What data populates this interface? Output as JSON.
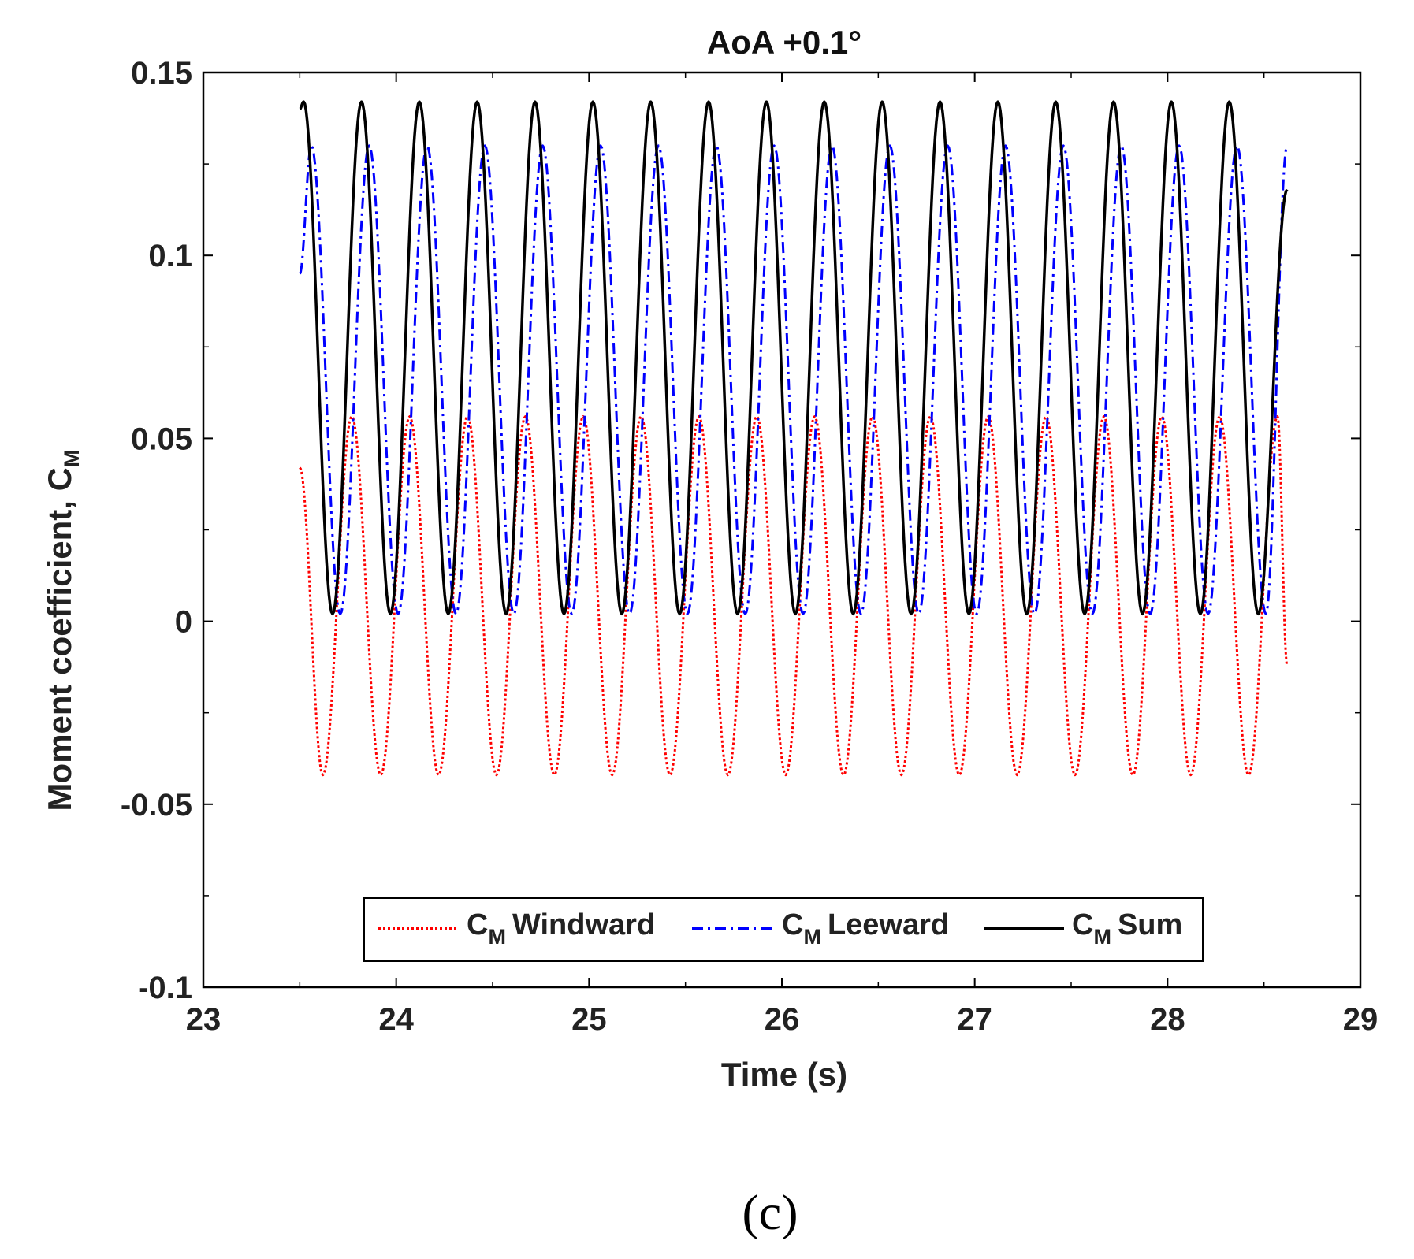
{
  "chart_data": {
    "type": "line",
    "title": "AoA +0.1°",
    "xlabel": "Time (s)",
    "ylabel": "Moment coefficient, C",
    "ylabel_sub": "M",
    "xlim": [
      23,
      29
    ],
    "ylim": [
      -0.1,
      0.15
    ],
    "x_ticks": [
      23,
      24,
      25,
      26,
      27,
      28,
      29
    ],
    "x_tick_labels": [
      "23",
      "24",
      "25",
      "26",
      "27",
      "28",
      "29"
    ],
    "y_ticks": [
      -0.1,
      -0.05,
      0,
      0.05,
      0.1,
      0.15
    ],
    "y_tick_labels": [
      "-0.1",
      "-0.05",
      "0",
      "0.05",
      "0.1",
      "0.15"
    ],
    "grid": false,
    "legend_position": "bottom-center",
    "panel_label": "(c)",
    "period_s": 0.2985,
    "time_range": [
      23.5,
      28.62
    ],
    "series": [
      {
        "name": "C Windward",
        "name_main": "C",
        "name_sub": "M",
        "name_rest": "Windward",
        "color": "#ff0000",
        "style": "dotted",
        "x": [
          23.5,
          23.62,
          23.77,
          23.92,
          24.07,
          24.22,
          24.37,
          24.52,
          24.67,
          24.82,
          24.97,
          25.12,
          25.27,
          25.42,
          25.57,
          25.72,
          25.87,
          26.02,
          26.17,
          26.32,
          26.47,
          26.62,
          26.77,
          26.92,
          27.07,
          27.22,
          27.37,
          27.52,
          27.67,
          27.82,
          27.97,
          28.12,
          28.27,
          28.42,
          28.57,
          28.62
        ],
        "y": [
          0.042,
          -0.042,
          0.056,
          -0.042,
          0.056,
          -0.042,
          0.056,
          -0.042,
          0.056,
          -0.042,
          0.056,
          -0.042,
          0.056,
          -0.042,
          0.056,
          -0.042,
          0.056,
          -0.042,
          0.056,
          -0.042,
          0.056,
          -0.042,
          0.056,
          -0.042,
          0.056,
          -0.042,
          0.056,
          -0.042,
          0.056,
          -0.042,
          0.056,
          -0.042,
          0.056,
          -0.042,
          0.056,
          -0.012
        ],
        "max": 0.056,
        "min": -0.042
      },
      {
        "name": "C Leeward",
        "name_main": "C",
        "name_sub": "M",
        "name_rest": "Leeward",
        "color": "#0000ff",
        "style": "dashdot",
        "x": [
          23.5,
          23.56,
          23.71,
          23.86,
          24.01,
          24.16,
          24.31,
          24.46,
          24.61,
          24.76,
          24.91,
          25.06,
          25.21,
          25.36,
          25.51,
          25.66,
          25.81,
          25.96,
          26.11,
          26.26,
          26.41,
          26.56,
          26.71,
          26.86,
          27.01,
          27.16,
          27.31,
          27.46,
          27.61,
          27.76,
          27.91,
          28.06,
          28.21,
          28.36,
          28.51,
          28.62
        ],
        "y": [
          0.095,
          0.13,
          0.002,
          0.13,
          0.002,
          0.13,
          0.002,
          0.13,
          0.002,
          0.13,
          0.002,
          0.13,
          0.002,
          0.13,
          0.002,
          0.13,
          0.002,
          0.13,
          0.002,
          0.13,
          0.002,
          0.13,
          0.002,
          0.13,
          0.002,
          0.13,
          0.002,
          0.13,
          0.002,
          0.13,
          0.002,
          0.13,
          0.002,
          0.13,
          0.002,
          0.13
        ],
        "max": 0.13,
        "min": 0.002
      },
      {
        "name": "C Sum",
        "name_main": "C",
        "name_sub": "M",
        "name_rest": "Sum",
        "color": "#000000",
        "style": "solid",
        "x": [
          23.5,
          23.52,
          23.67,
          23.82,
          23.97,
          24.12,
          24.27,
          24.42,
          24.57,
          24.72,
          24.87,
          25.02,
          25.17,
          25.32,
          25.47,
          25.62,
          25.77,
          25.92,
          26.07,
          26.22,
          26.37,
          26.52,
          26.67,
          26.82,
          26.97,
          27.12,
          27.27,
          27.42,
          27.57,
          27.72,
          27.87,
          28.02,
          28.17,
          28.32,
          28.47,
          28.62
        ],
        "y": [
          0.14,
          0.142,
          0.002,
          0.142,
          0.002,
          0.142,
          0.002,
          0.142,
          0.002,
          0.142,
          0.002,
          0.142,
          0.002,
          0.142,
          0.002,
          0.142,
          0.002,
          0.142,
          0.002,
          0.142,
          0.002,
          0.142,
          0.002,
          0.142,
          0.002,
          0.142,
          0.002,
          0.142,
          0.002,
          0.142,
          0.002,
          0.142,
          0.002,
          0.142,
          0.002,
          0.118
        ],
        "max": 0.142,
        "min": 0.002
      }
    ]
  }
}
